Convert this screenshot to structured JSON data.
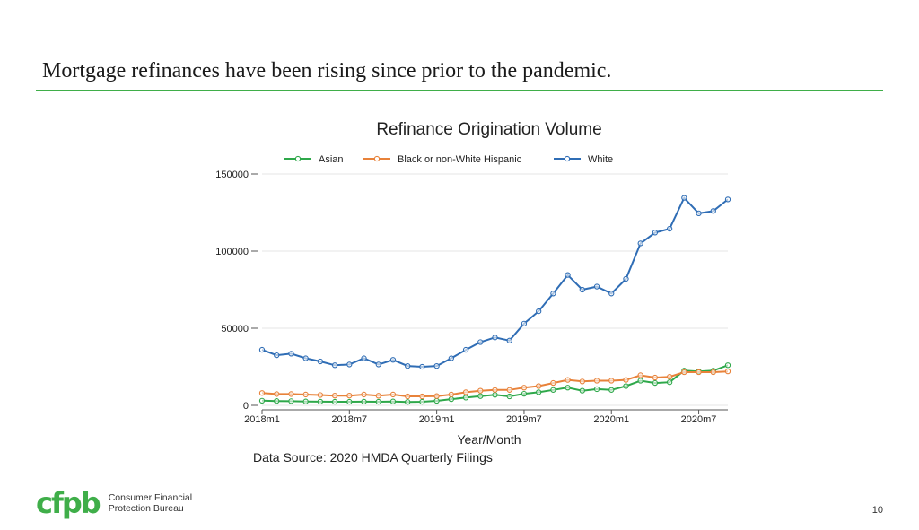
{
  "slide": {
    "title": "Mortgage refinances have been rising since prior to the pandemic.",
    "accent_color": "#3fae49",
    "page_number": "10"
  },
  "logo": {
    "mark": "cfpb",
    "line1": "Consumer Financial",
    "line2": "Protection Bureau",
    "color": "#3fae49"
  },
  "chart_data": {
    "type": "line",
    "title": "Refinance Origination Volume",
    "xlabel": "Year/Month",
    "ylabel": "",
    "source": "Data Source: 2020 HMDA Quarterly Filings",
    "ylim": [
      0,
      150000
    ],
    "yticks": [
      0,
      50000,
      100000,
      150000
    ],
    "ytick_labels": [
      "0",
      "50000",
      "100000",
      "150000"
    ],
    "xticks": [
      0,
      6,
      12,
      18,
      24,
      30
    ],
    "xtick_labels": [
      "2018m1",
      "2018m7",
      "2019m1",
      "2019m7",
      "2020m1",
      "2020m7"
    ],
    "x": [
      0,
      1,
      2,
      3,
      4,
      5,
      6,
      7,
      8,
      9,
      10,
      11,
      12,
      13,
      14,
      15,
      16,
      17,
      18,
      19,
      20,
      21,
      22,
      23,
      24,
      25,
      26,
      27,
      28,
      29,
      30,
      31,
      32
    ],
    "legend_position": "top",
    "series": [
      {
        "name": "Asian",
        "color": "#2ea84a",
        "values": [
          3000,
          2800,
          2700,
          2500,
          2400,
          2300,
          2300,
          2400,
          2300,
          2500,
          2200,
          2300,
          2900,
          4000,
          5000,
          6000,
          6800,
          5800,
          7500,
          8500,
          10000,
          11500,
          9500,
          10500,
          10000,
          12500,
          16000,
          14500,
          15000,
          22500,
          22000,
          22500,
          26000
        ]
      },
      {
        "name": "Black or non-White Hispanic",
        "color": "#e8823a",
        "values": [
          8000,
          7300,
          7300,
          7000,
          6700,
          6300,
          6300,
          7000,
          6200,
          7000,
          5800,
          5800,
          6000,
          7000,
          8500,
          9500,
          10000,
          10000,
          11500,
          12500,
          14500,
          16500,
          15500,
          16000,
          16000,
          16500,
          19500,
          18000,
          18500,
          21500,
          21500,
          21500,
          22000
        ]
      },
      {
        "name": "White",
        "color": "#2f6db5",
        "values": [
          36000,
          32500,
          33500,
          30500,
          28500,
          26000,
          26500,
          30500,
          26500,
          29500,
          25500,
          25000,
          25500,
          30500,
          36000,
          41000,
          44000,
          42000,
          53000,
          61000,
          72500,
          84500,
          75000,
          77000,
          72500,
          82000,
          105000,
          112000,
          114500,
          134500,
          124500,
          126000,
          133500
        ]
      }
    ]
  }
}
